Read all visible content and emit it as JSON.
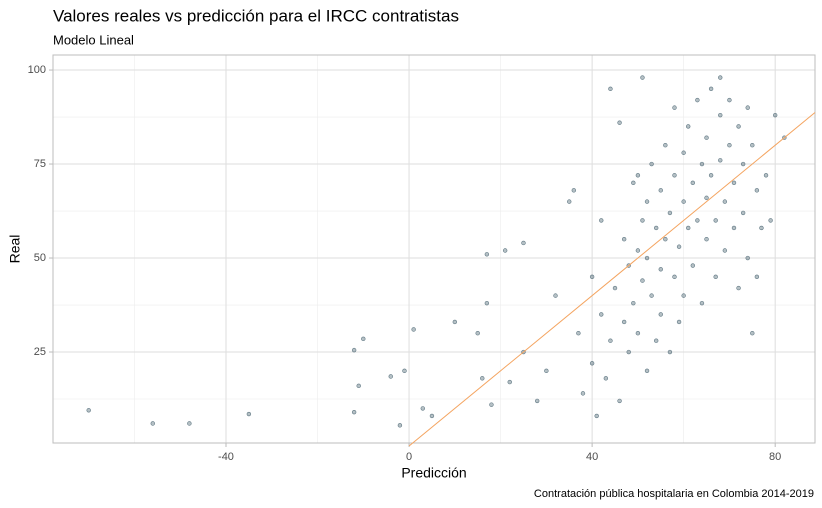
{
  "chart_data": {
    "type": "scatter",
    "title": "Valores reales vs predicción para el IRCC contratistas",
    "subtitle": "Modelo Lineal",
    "x_label": "Predicción",
    "y_label": "Real",
    "caption": "Contratación pública hospitalaria en Colombia 2014-2019",
    "xlim": [
      -77.8,
      88.7
    ],
    "ylim": [
      0.8,
      104
    ],
    "xticks": [
      -40,
      0,
      40,
      80
    ],
    "yticks": [
      25,
      50,
      75,
      100
    ],
    "x_minor_grid": [
      -60,
      -20,
      20,
      60
    ],
    "y_minor_grid": [
      12.5,
      37.5,
      62.5,
      87.5
    ],
    "grid": true,
    "color": "#2b4a5a",
    "reference_line": {
      "x": [
        0,
        88.7
      ],
      "y": [
        0,
        88.7
      ],
      "color": "#f4a460"
    },
    "x": [
      -70,
      -56,
      -48,
      -35,
      -12,
      -12,
      -11,
      -10,
      -4,
      -1,
      -2,
      1,
      3,
      5,
      10,
      15,
      16,
      17,
      17,
      18,
      21,
      22,
      25,
      25,
      28,
      30,
      32,
      35,
      36,
      37,
      38,
      40,
      40,
      41,
      42,
      42,
      43,
      44,
      44,
      45,
      46,
      46,
      47,
      47,
      48,
      48,
      49,
      49,
      50,
      50,
      50,
      51,
      51,
      51,
      52,
      52,
      52,
      53,
      53,
      54,
      54,
      55,
      55,
      55,
      56,
      56,
      57,
      57,
      58,
      58,
      58,
      59,
      59,
      60,
      60,
      60,
      61,
      61,
      62,
      62,
      63,
      63,
      64,
      64,
      65,
      65,
      65,
      66,
      66,
      67,
      67,
      68,
      68,
      69,
      69,
      70,
      70,
      71,
      71,
      72,
      72,
      73,
      73,
      74,
      74,
      75,
      75,
      76,
      77,
      78,
      79,
      80,
      82,
      76,
      68
    ],
    "y": [
      9.5,
      6,
      6,
      8.5,
      9,
      25.5,
      16,
      28.5,
      18.5,
      20,
      5.5,
      31,
      10,
      8,
      33,
      30,
      18,
      51,
      38,
      11,
      52,
      17,
      54,
      25,
      12,
      20,
      40,
      65,
      68,
      30,
      14,
      45,
      22,
      8,
      60,
      35,
      18,
      95,
      28,
      42,
      86,
      12,
      55,
      33,
      25,
      48,
      38,
      70,
      52,
      30,
      72,
      98,
      60,
      44,
      65,
      20,
      50,
      75,
      40,
      58,
      28,
      68,
      47,
      35,
      80,
      55,
      62,
      25,
      72,
      45,
      90,
      53,
      33,
      78,
      65,
      40,
      58,
      85,
      70,
      48,
      92,
      60,
      75,
      38,
      82,
      55,
      66,
      95,
      72,
      60,
      45,
      88,
      76,
      65,
      52,
      92,
      80,
      70,
      58,
      85,
      42,
      75,
      62,
      90,
      50,
      80,
      30,
      68,
      58,
      72,
      60,
      88,
      82,
      45,
      98
    ]
  }
}
